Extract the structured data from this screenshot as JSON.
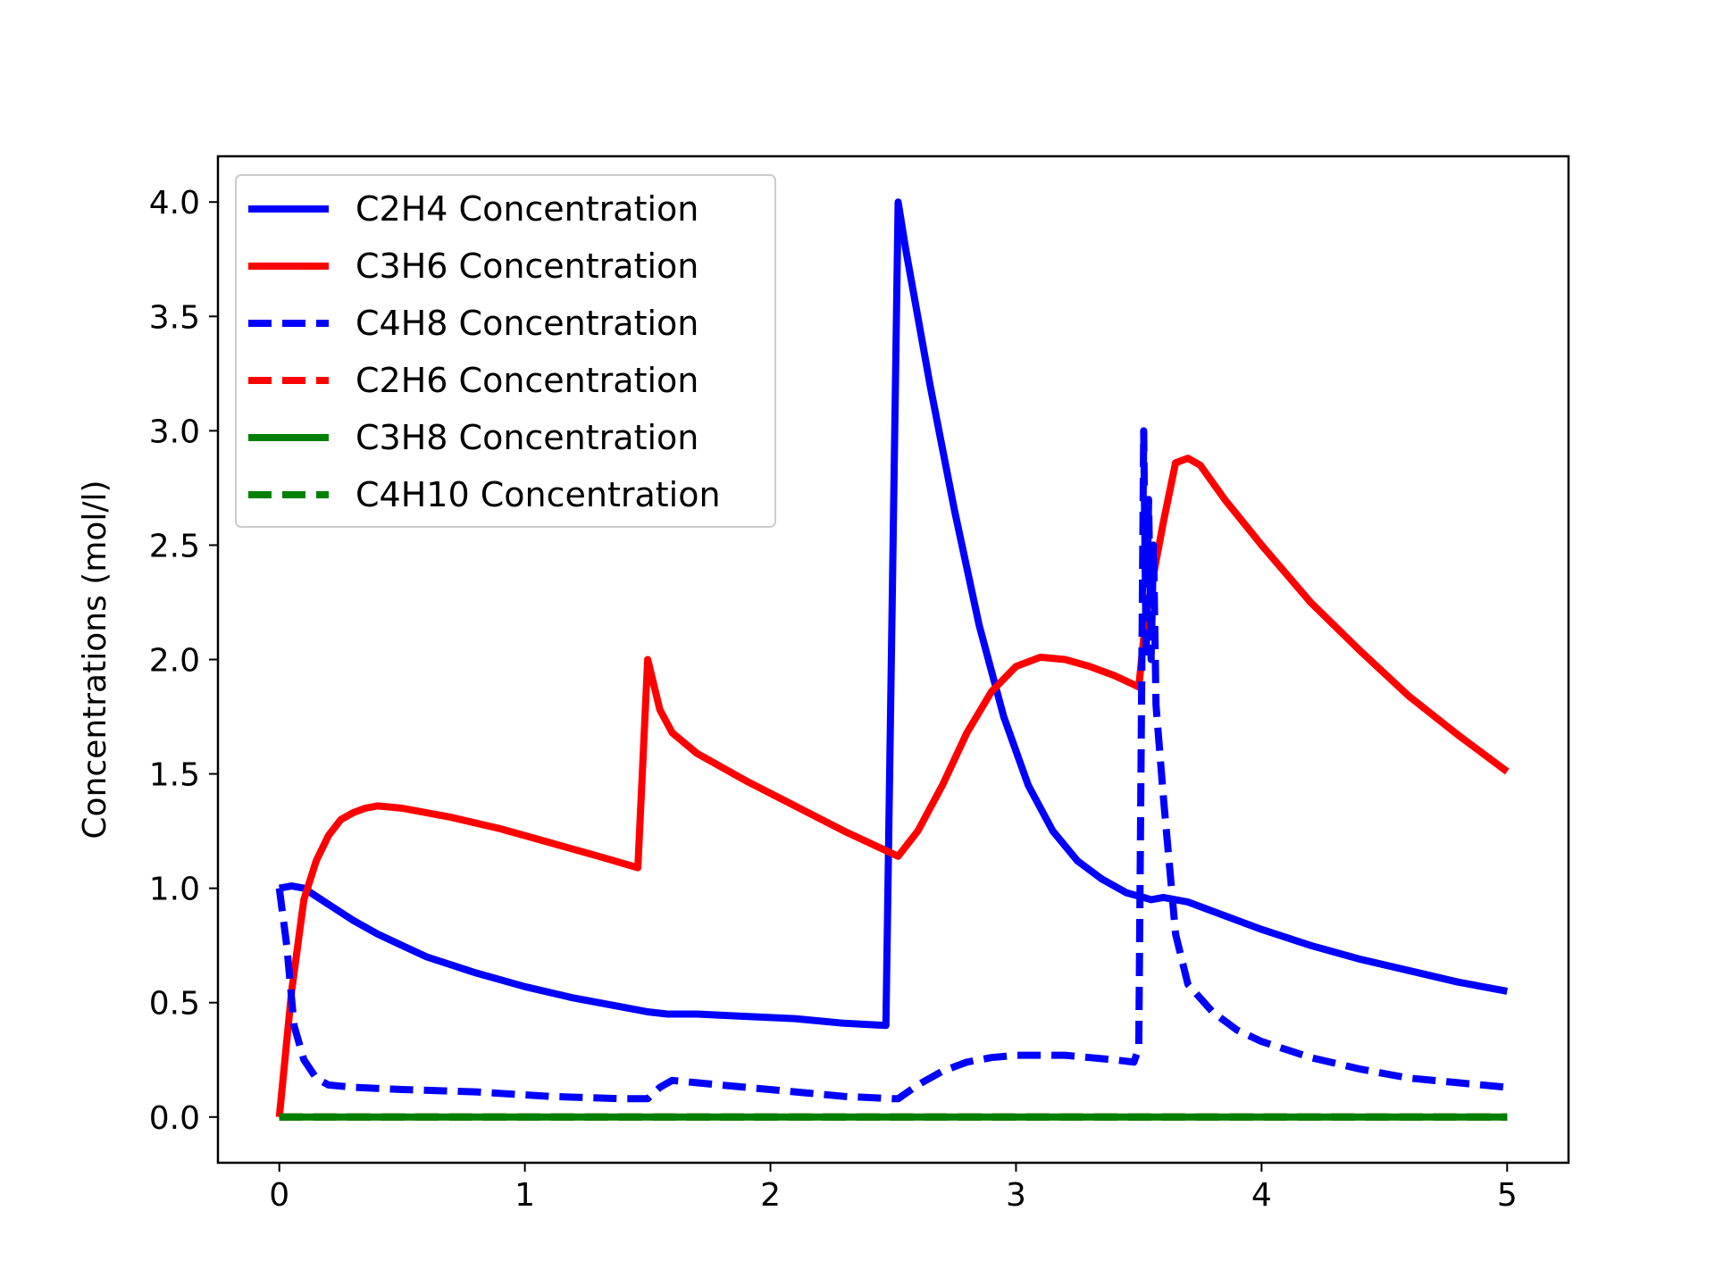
{
  "chart_data": {
    "type": "line",
    "title": "",
    "xlabel": "",
    "ylabel": "Concentrations (mol/l)",
    "xlim": [
      -0.25,
      5.25
    ],
    "ylim": [
      -0.2,
      4.2
    ],
    "xticks": [
      0,
      1,
      2,
      3,
      4,
      5
    ],
    "yticks": [
      0.0,
      0.5,
      1.0,
      1.5,
      2.0,
      2.5,
      3.0,
      3.5,
      4.0
    ],
    "xtick_labels": [
      "0",
      "1",
      "2",
      "3",
      "4",
      "5"
    ],
    "ytick_labels": [
      "0.0",
      "0.5",
      "1.0",
      "1.5",
      "2.0",
      "2.5",
      "3.0",
      "3.5",
      "4.0"
    ],
    "grid": false,
    "legend_position": "top-left",
    "series": [
      {
        "name": "C2H4 Concentration",
        "color": "#0000ff",
        "style": "solid",
        "x": [
          0,
          0.05,
          0.1,
          0.2,
          0.3,
          0.4,
          0.5,
          0.6,
          0.8,
          1.0,
          1.2,
          1.4,
          1.5,
          1.58,
          1.7,
          1.9,
          2.1,
          2.3,
          2.47,
          2.52,
          2.55,
          2.65,
          2.75,
          2.85,
          2.95,
          3.05,
          3.15,
          3.25,
          3.35,
          3.45,
          3.52,
          3.55,
          3.6,
          3.7,
          3.85,
          4.0,
          4.2,
          4.4,
          4.6,
          4.8,
          5.0
        ],
        "y": [
          1.0,
          1.01,
          1.0,
          0.93,
          0.86,
          0.8,
          0.75,
          0.7,
          0.63,
          0.57,
          0.52,
          0.48,
          0.46,
          0.45,
          0.45,
          0.44,
          0.43,
          0.41,
          0.4,
          4.0,
          3.8,
          3.2,
          2.65,
          2.15,
          1.75,
          1.45,
          1.25,
          1.12,
          1.04,
          0.98,
          0.96,
          0.95,
          0.96,
          0.94,
          0.88,
          0.82,
          0.75,
          0.69,
          0.64,
          0.59,
          0.55
        ]
      },
      {
        "name": "C3H6 Concentration",
        "color": "#ff0000",
        "style": "solid",
        "x": [
          0,
          0.05,
          0.1,
          0.15,
          0.2,
          0.25,
          0.3,
          0.35,
          0.4,
          0.5,
          0.7,
          0.9,
          1.1,
          1.3,
          1.46,
          1.5,
          1.55,
          1.6,
          1.7,
          1.9,
          2.1,
          2.3,
          2.5,
          2.52,
          2.6,
          2.7,
          2.8,
          2.9,
          3.0,
          3.1,
          3.2,
          3.3,
          3.4,
          3.5,
          3.53,
          3.6,
          3.65,
          3.7,
          3.75,
          3.85,
          4.0,
          4.2,
          4.4,
          4.6,
          4.8,
          5.0
        ],
        "y": [
          0.0,
          0.55,
          0.95,
          1.12,
          1.23,
          1.3,
          1.33,
          1.35,
          1.36,
          1.35,
          1.31,
          1.26,
          1.2,
          1.14,
          1.09,
          2.0,
          1.78,
          1.68,
          1.59,
          1.47,
          1.36,
          1.25,
          1.15,
          1.14,
          1.25,
          1.45,
          1.68,
          1.86,
          1.97,
          2.01,
          2.0,
          1.97,
          1.93,
          1.88,
          2.2,
          2.6,
          2.86,
          2.88,
          2.85,
          2.7,
          2.5,
          2.25,
          2.04,
          1.84,
          1.67,
          1.51
        ]
      },
      {
        "name": "C4H8 Concentration",
        "color": "#0000ff",
        "style": "dashed",
        "x": [
          0,
          0.03,
          0.06,
          0.1,
          0.15,
          0.2,
          0.3,
          0.5,
          0.8,
          1.1,
          1.4,
          1.5,
          1.55,
          1.6,
          1.7,
          1.9,
          2.1,
          2.3,
          2.5,
          2.52,
          2.6,
          2.7,
          2.8,
          2.9,
          3.0,
          3.1,
          3.2,
          3.3,
          3.4,
          3.48,
          3.5,
          3.52,
          3.53,
          3.54,
          3.55,
          3.56,
          3.57,
          3.6,
          3.65,
          3.7,
          3.8,
          3.9,
          4.0,
          4.2,
          4.4,
          4.6,
          4.8,
          5.0
        ],
        "y": [
          1.0,
          0.75,
          0.4,
          0.25,
          0.17,
          0.14,
          0.13,
          0.12,
          0.11,
          0.09,
          0.08,
          0.08,
          0.13,
          0.16,
          0.15,
          0.13,
          0.11,
          0.09,
          0.08,
          0.08,
          0.14,
          0.2,
          0.24,
          0.26,
          0.27,
          0.27,
          0.27,
          0.26,
          0.25,
          0.24,
          0.3,
          3.0,
          2.0,
          2.7,
          2.0,
          2.5,
          1.8,
          1.4,
          0.8,
          0.58,
          0.46,
          0.38,
          0.33,
          0.26,
          0.21,
          0.17,
          0.15,
          0.13
        ]
      },
      {
        "name": "C2H6 Concentration",
        "color": "#ff0000",
        "style": "dashed",
        "x": [
          0,
          5.0
        ],
        "y": [
          0.0,
          0.0
        ]
      },
      {
        "name": "C3H8 Concentration",
        "color": "#008000",
        "style": "solid",
        "x": [
          0,
          5.0
        ],
        "y": [
          0.0,
          0.0
        ]
      },
      {
        "name": "C4H10 Concentration",
        "color": "#008000",
        "style": "dashed",
        "x": [
          0,
          5.0
        ],
        "y": [
          0.0,
          0.0
        ]
      }
    ]
  }
}
